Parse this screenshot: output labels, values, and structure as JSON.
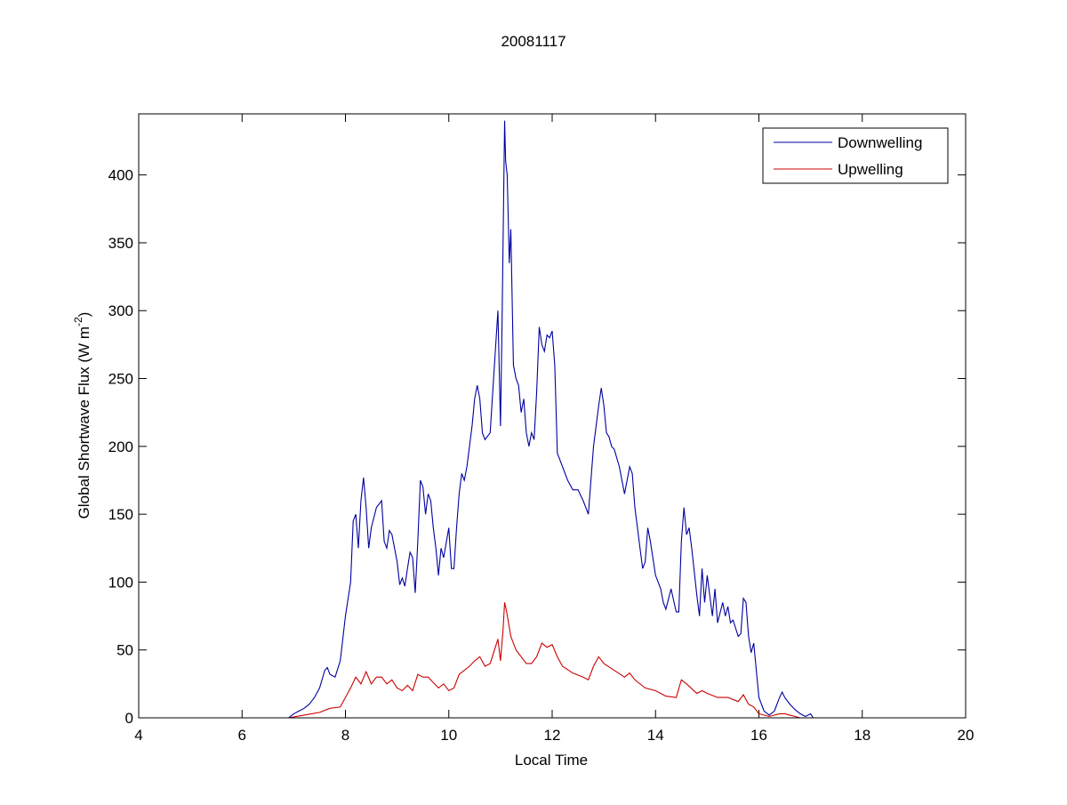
{
  "chart_data": {
    "type": "line",
    "title": "20081117",
    "xlabel": "Local Time",
    "ylabel": [
      "Global Shortwave Flux (W m",
      "-2",
      ")"
    ],
    "xlim": [
      4,
      20
    ],
    "xticks": [
      4,
      6,
      8,
      10,
      12,
      14,
      16,
      18,
      20
    ],
    "ylim": [
      0,
      445
    ],
    "yticks": [
      0,
      50,
      100,
      150,
      200,
      250,
      300,
      350,
      400
    ],
    "legend": "northeast",
    "series": [
      {
        "name": "Downwelling",
        "color": "#0000a0",
        "x": [
          6.9,
          7.0,
          7.1,
          7.2,
          7.3,
          7.4,
          7.5,
          7.6,
          7.65,
          7.7,
          7.8,
          7.9,
          8.0,
          8.1,
          8.15,
          8.2,
          8.25,
          8.3,
          8.35,
          8.4,
          8.45,
          8.5,
          8.6,
          8.7,
          8.75,
          8.8,
          8.85,
          8.9,
          9.0,
          9.05,
          9.1,
          9.15,
          9.2,
          9.25,
          9.3,
          9.35,
          9.4,
          9.45,
          9.5,
          9.55,
          9.6,
          9.65,
          9.7,
          9.75,
          9.8,
          9.85,
          9.9,
          10.0,
          10.05,
          10.1,
          10.15,
          10.2,
          10.25,
          10.3,
          10.35,
          10.4,
          10.45,
          10.5,
          10.55,
          10.6,
          10.65,
          10.7,
          10.8,
          10.9,
          10.95,
          11.0,
          11.03,
          11.06,
          11.08,
          11.1,
          11.13,
          11.17,
          11.2,
          11.25,
          11.3,
          11.35,
          11.4,
          11.45,
          11.5,
          11.55,
          11.6,
          11.65,
          11.7,
          11.75,
          11.8,
          11.85,
          11.9,
          11.95,
          12.0,
          12.05,
          12.1,
          12.2,
          12.3,
          12.4,
          12.5,
          12.6,
          12.7,
          12.8,
          12.9,
          12.95,
          13.0,
          13.05,
          13.1,
          13.15,
          13.2,
          13.3,
          13.4,
          13.5,
          13.55,
          13.6,
          13.7,
          13.75,
          13.8,
          13.85,
          13.9,
          14.0,
          14.1,
          14.15,
          14.2,
          14.3,
          14.4,
          14.45,
          14.5,
          14.55,
          14.6,
          14.65,
          14.7,
          14.8,
          14.85,
          14.9,
          14.95,
          15.0,
          15.05,
          15.1,
          15.15,
          15.2,
          15.3,
          15.35,
          15.4,
          15.45,
          15.5,
          15.6,
          15.65,
          15.7,
          15.75,
          15.8,
          15.85,
          15.9,
          15.95,
          16.0,
          16.1,
          16.2,
          16.3,
          16.4,
          16.45,
          16.5,
          16.6,
          16.7,
          16.8,
          16.9,
          17.0,
          17.05
        ],
        "values": [
          0,
          3,
          5,
          7,
          10,
          15,
          22,
          35,
          37,
          32,
          30,
          42,
          75,
          100,
          145,
          150,
          125,
          160,
          177,
          155,
          125,
          140,
          155,
          160,
          130,
          125,
          138,
          135,
          115,
          98,
          103,
          97,
          110,
          122,
          118,
          92,
          130,
          175,
          170,
          150,
          165,
          160,
          140,
          125,
          105,
          125,
          118,
          140,
          110,
          110,
          140,
          165,
          180,
          175,
          185,
          200,
          215,
          235,
          245,
          235,
          210,
          205,
          210,
          270,
          300,
          215,
          290,
          380,
          440,
          410,
          400,
          335,
          360,
          260,
          250,
          245,
          225,
          235,
          210,
          200,
          210,
          205,
          240,
          288,
          275,
          270,
          282,
          280,
          285,
          260,
          195,
          185,
          175,
          168,
          168,
          160,
          150,
          200,
          230,
          243,
          230,
          210,
          207,
          200,
          198,
          185,
          165,
          185,
          180,
          155,
          125,
          110,
          115,
          140,
          130,
          105,
          95,
          85,
          80,
          95,
          78,
          78,
          130,
          155,
          135,
          140,
          125,
          90,
          75,
          110,
          85,
          105,
          90,
          75,
          95,
          70,
          85,
          75,
          82,
          70,
          72,
          60,
          62,
          88,
          85,
          60,
          48,
          55,
          35,
          15,
          5,
          2,
          5,
          15,
          19,
          15,
          10,
          6,
          3,
          1,
          3,
          0
        ]
      },
      {
        "name": "Upwelling",
        "color": "#cc0000",
        "x": [
          6.9,
          7.2,
          7.5,
          7.7,
          7.9,
          8.0,
          8.1,
          8.2,
          8.3,
          8.4,
          8.5,
          8.6,
          8.7,
          8.8,
          8.9,
          9.0,
          9.1,
          9.2,
          9.3,
          9.4,
          9.5,
          9.6,
          9.7,
          9.8,
          9.9,
          10.0,
          10.1,
          10.2,
          10.3,
          10.4,
          10.5,
          10.6,
          10.7,
          10.8,
          10.9,
          10.95,
          11.0,
          11.05,
          11.08,
          11.12,
          11.2,
          11.3,
          11.4,
          11.5,
          11.6,
          11.7,
          11.8,
          11.9,
          12.0,
          12.1,
          12.2,
          12.4,
          12.6,
          12.7,
          12.8,
          12.9,
          13.0,
          13.2,
          13.4,
          13.5,
          13.6,
          13.8,
          14.0,
          14.2,
          14.4,
          14.5,
          14.6,
          14.8,
          14.9,
          15.0,
          15.2,
          15.4,
          15.6,
          15.7,
          15.8,
          15.9,
          16.0,
          16.2,
          16.4,
          16.5,
          16.7,
          16.8
        ],
        "values": [
          0,
          2,
          4,
          7,
          8,
          15,
          22,
          30,
          25,
          34,
          25,
          30,
          30,
          25,
          28,
          22,
          20,
          24,
          20,
          32,
          30,
          30,
          26,
          22,
          25,
          20,
          22,
          32,
          35,
          38,
          42,
          45,
          38,
          40,
          52,
          58,
          42,
          65,
          85,
          78,
          60,
          50,
          45,
          40,
          40,
          45,
          55,
          52,
          54,
          45,
          38,
          33,
          30,
          28,
          38,
          45,
          40,
          35,
          30,
          33,
          28,
          22,
          20,
          16,
          15,
          28,
          25,
          18,
          20,
          18,
          15,
          15,
          12,
          17,
          10,
          8,
          3,
          1,
          3,
          3,
          1,
          0
        ]
      }
    ]
  }
}
